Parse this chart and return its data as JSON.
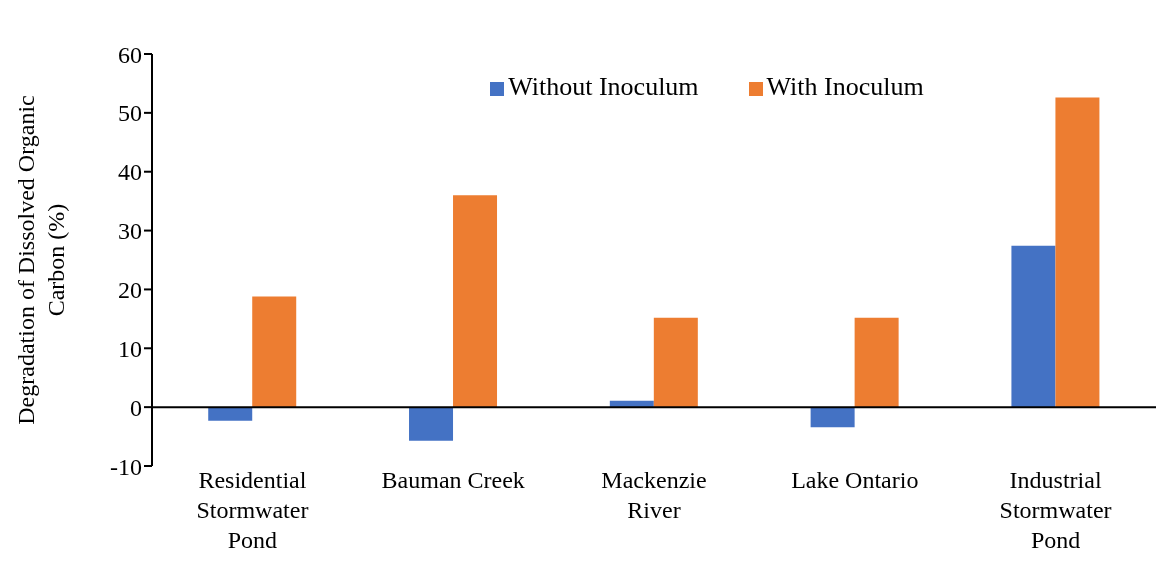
{
  "chart_data": {
    "type": "bar",
    "ylabel": "Degradation of Dissolved Organic Carbon (%)",
    "categories": [
      "Residential Stormwater Pond",
      "Bauman Creek",
      "Mackenzie River",
      "Lake Ontario",
      "Industrial Stormwater Pond"
    ],
    "series": [
      {
        "name": "Without Inoculum",
        "color": "#4472c4",
        "values": [
          -2.3,
          -5.7,
          1.1,
          -3.4,
          27.4
        ]
      },
      {
        "name": "With Inoculum",
        "color": "#ed7d31",
        "values": [
          18.8,
          36.0,
          15.2,
          15.2,
          52.6
        ]
      }
    ],
    "ylim": [
      -10,
      60
    ],
    "yticks": [
      -10,
      0,
      10,
      20,
      30,
      40,
      50,
      60
    ],
    "grid": false,
    "legend": "top"
  }
}
